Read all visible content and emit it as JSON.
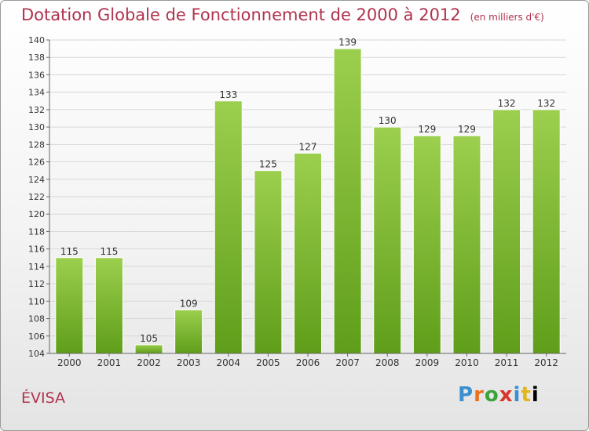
{
  "header": {
    "title": "Dotation Globale de Fonctionnement de 2000 à 2012",
    "unit": "(en milliers d'€)"
  },
  "footer": {
    "commune": "ÉVISA",
    "brand": [
      "P",
      "r",
      "o",
      "x",
      "i",
      "t",
      "i"
    ]
  },
  "colors": {
    "bar_top": "#9ccf4e",
    "bar_bottom": "#5f9e1a",
    "title": "#b0324e",
    "grid": "#d8d8d8"
  },
  "chart_data": {
    "type": "bar",
    "title": "Dotation Globale de Fonctionnement de 2000 à 2012",
    "xlabel": "",
    "ylabel": "",
    "categories": [
      "2000",
      "2001",
      "2002",
      "2003",
      "2004",
      "2005",
      "2006",
      "2007",
      "2008",
      "2009",
      "2010",
      "2011",
      "2012"
    ],
    "values": [
      115,
      115,
      105,
      109,
      133,
      125,
      127,
      139,
      130,
      129,
      129,
      132,
      132
    ],
    "ylim": [
      104,
      140
    ],
    "yticks": [
      104,
      106,
      108,
      110,
      112,
      114,
      116,
      118,
      120,
      122,
      124,
      126,
      128,
      130,
      132,
      134,
      136,
      138,
      140
    ],
    "grid": true,
    "data_labels": true
  }
}
